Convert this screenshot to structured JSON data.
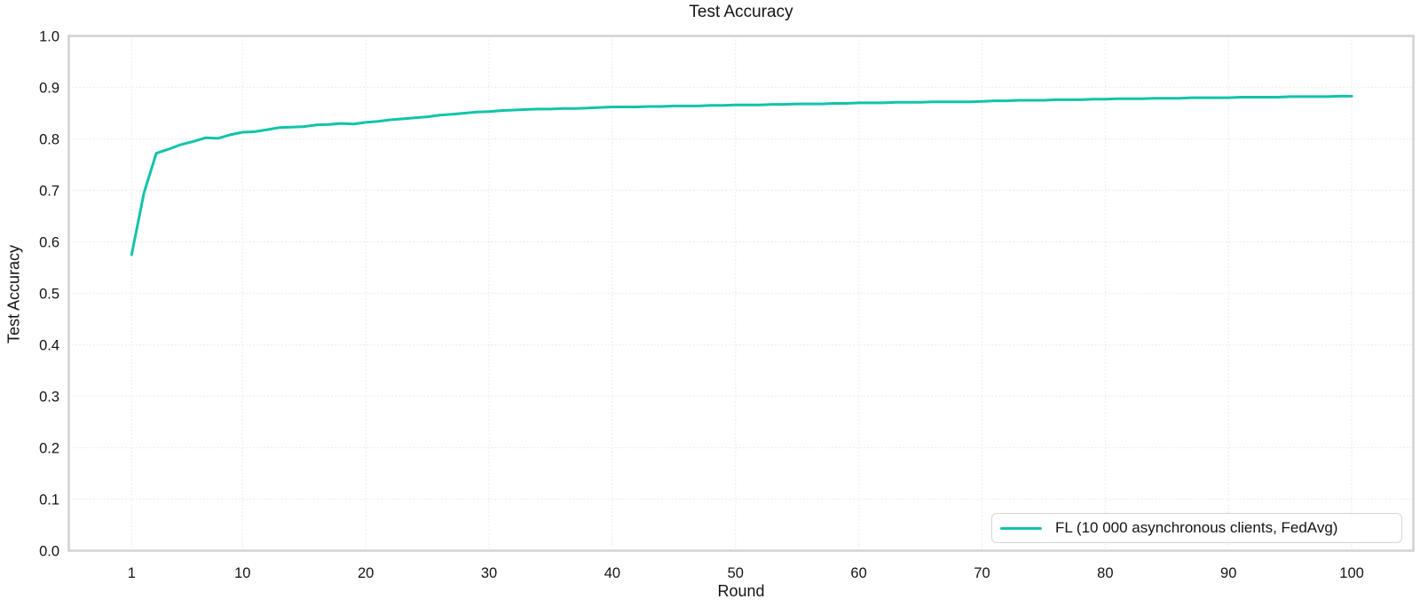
{
  "title": "Test Accuracy",
  "colors": {
    "line": "#10c4aa",
    "grid": "#e4e4e4",
    "spine": "#d2d2d2",
    "text": "#141414",
    "background": "#ffffff"
  },
  "legend": {
    "label": "FL (10 000 asynchronous clients, FedAvg)",
    "position": "lower right"
  },
  "chart_data": {
    "type": "line",
    "title": "Test Accuracy",
    "xlabel": "Round",
    "ylabel": "Test Accuracy",
    "xlim": [
      -4.1,
      105.0
    ],
    "ylim": [
      0.0,
      1.0
    ],
    "grid": true,
    "grid_style": "dotted",
    "legend_position": "lower right",
    "x_ticks": [
      1,
      10,
      20,
      30,
      40,
      50,
      60,
      70,
      80,
      90,
      100
    ],
    "y_ticks": [
      "0.0",
      "0.1",
      "0.2",
      "0.3",
      "0.4",
      "0.5",
      "0.6",
      "0.7",
      "0.8",
      "0.9",
      "1.0"
    ],
    "series": [
      {
        "name": "FL (10 000 asynchronous clients, FedAvg)",
        "color": "#10c4aa",
        "x": [
          1,
          2,
          3,
          4,
          5,
          6,
          7,
          8,
          9,
          10,
          11,
          12,
          13,
          14,
          15,
          16,
          17,
          18,
          19,
          20,
          21,
          22,
          23,
          24,
          25,
          26,
          27,
          28,
          29,
          30,
          31,
          32,
          33,
          34,
          35,
          36,
          37,
          38,
          39,
          40,
          41,
          42,
          43,
          44,
          45,
          46,
          47,
          48,
          49,
          50,
          51,
          52,
          53,
          54,
          55,
          56,
          57,
          58,
          59,
          60,
          61,
          62,
          63,
          64,
          65,
          66,
          67,
          68,
          69,
          70,
          71,
          72,
          73,
          74,
          75,
          76,
          77,
          78,
          79,
          80,
          81,
          82,
          83,
          84,
          85,
          86,
          87,
          88,
          89,
          90,
          91,
          92,
          93,
          94,
          95,
          96,
          97,
          98,
          99,
          100
        ],
        "y": [
          0.575,
          0.695,
          0.772,
          0.78,
          0.789,
          0.795,
          0.802,
          0.801,
          0.808,
          0.813,
          0.814,
          0.818,
          0.822,
          0.823,
          0.824,
          0.827,
          0.828,
          0.83,
          0.829,
          0.832,
          0.834,
          0.837,
          0.839,
          0.841,
          0.843,
          0.846,
          0.848,
          0.85,
          0.852,
          0.853,
          0.855,
          0.856,
          0.857,
          0.858,
          0.858,
          0.859,
          0.859,
          0.86,
          0.861,
          0.862,
          0.862,
          0.862,
          0.863,
          0.863,
          0.864,
          0.864,
          0.864,
          0.865,
          0.865,
          0.866,
          0.866,
          0.866,
          0.867,
          0.867,
          0.868,
          0.868,
          0.868,
          0.869,
          0.869,
          0.87,
          0.87,
          0.87,
          0.871,
          0.871,
          0.871,
          0.872,
          0.872,
          0.872,
          0.872,
          0.873,
          0.874,
          0.874,
          0.875,
          0.875,
          0.875,
          0.876,
          0.876,
          0.876,
          0.877,
          0.877,
          0.878,
          0.878,
          0.878,
          0.879,
          0.879,
          0.879,
          0.88,
          0.88,
          0.88,
          0.88,
          0.881,
          0.881,
          0.881,
          0.881,
          0.882,
          0.882,
          0.882,
          0.882,
          0.883,
          0.883
        ]
      }
    ]
  }
}
